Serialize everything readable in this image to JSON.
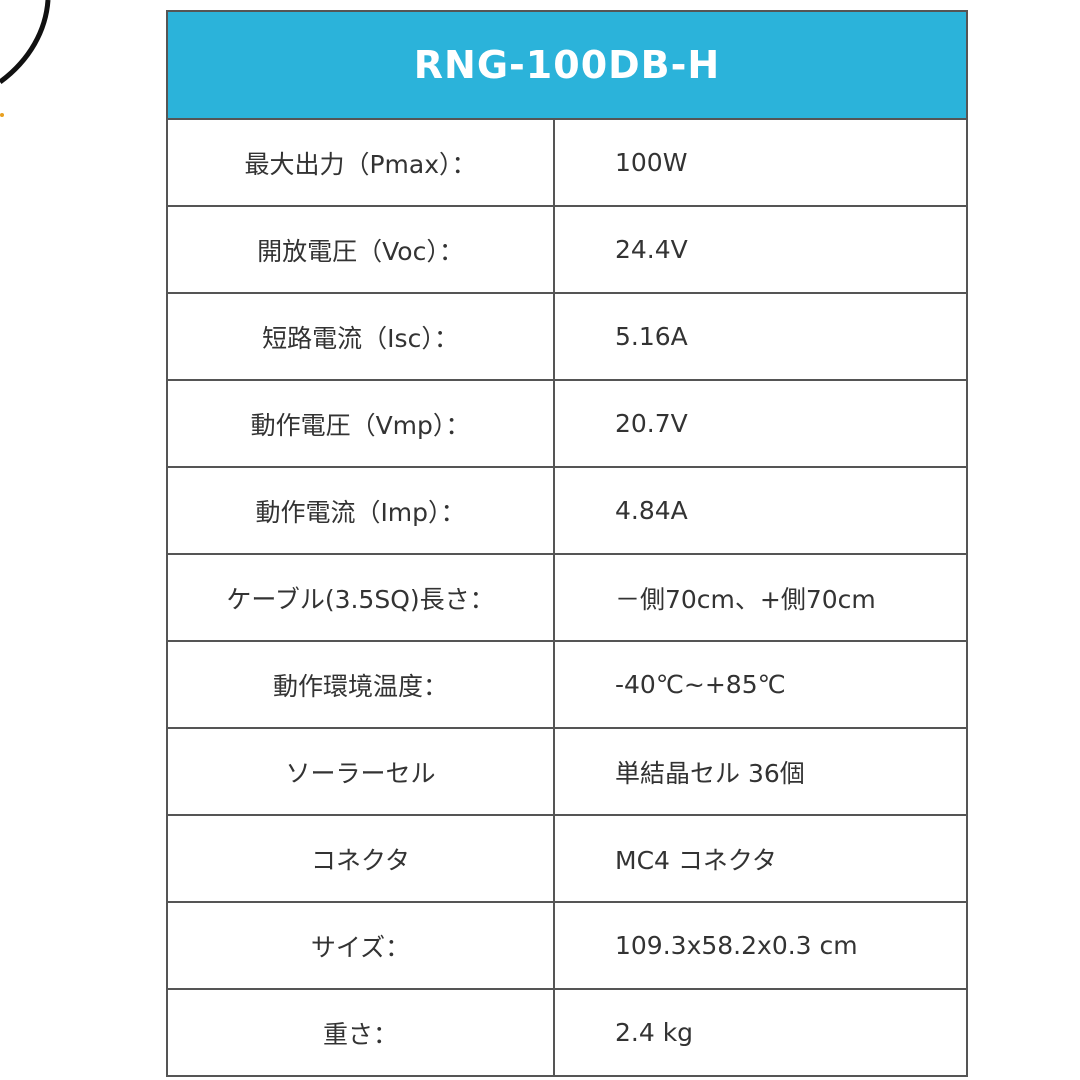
{
  "table": {
    "title": "RNG-100DB-H",
    "header_color": "#2bb3da",
    "rows": [
      {
        "label": "最大出力（Pmax）：",
        "value": "100W"
      },
      {
        "label": "開放電圧（Voc）：",
        "value": "24.4V"
      },
      {
        "label": "短路電流（Isc）：",
        "value": "5.16A"
      },
      {
        "label": "動作電圧（Vmp）：",
        "value": "20.7V"
      },
      {
        "label": "動作電流（Imp）：",
        "value": "4.84A"
      },
      {
        "label": "ケーブル(3.5SQ)長さ：",
        "value": "－側70cm、+側70cm"
      },
      {
        "label": "動作環境温度：",
        "value": "-40℃~+85℃"
      },
      {
        "label": "ソーラーセル",
        "value": "単結晶セル 36個"
      },
      {
        "label": "コネクタ",
        "value": "MC4 コネクタ"
      },
      {
        "label": "サイズ：",
        "value": "109.3x58.2x0.3 cm"
      },
      {
        "label": "重さ：",
        "value": "2.4 kg"
      }
    ]
  }
}
